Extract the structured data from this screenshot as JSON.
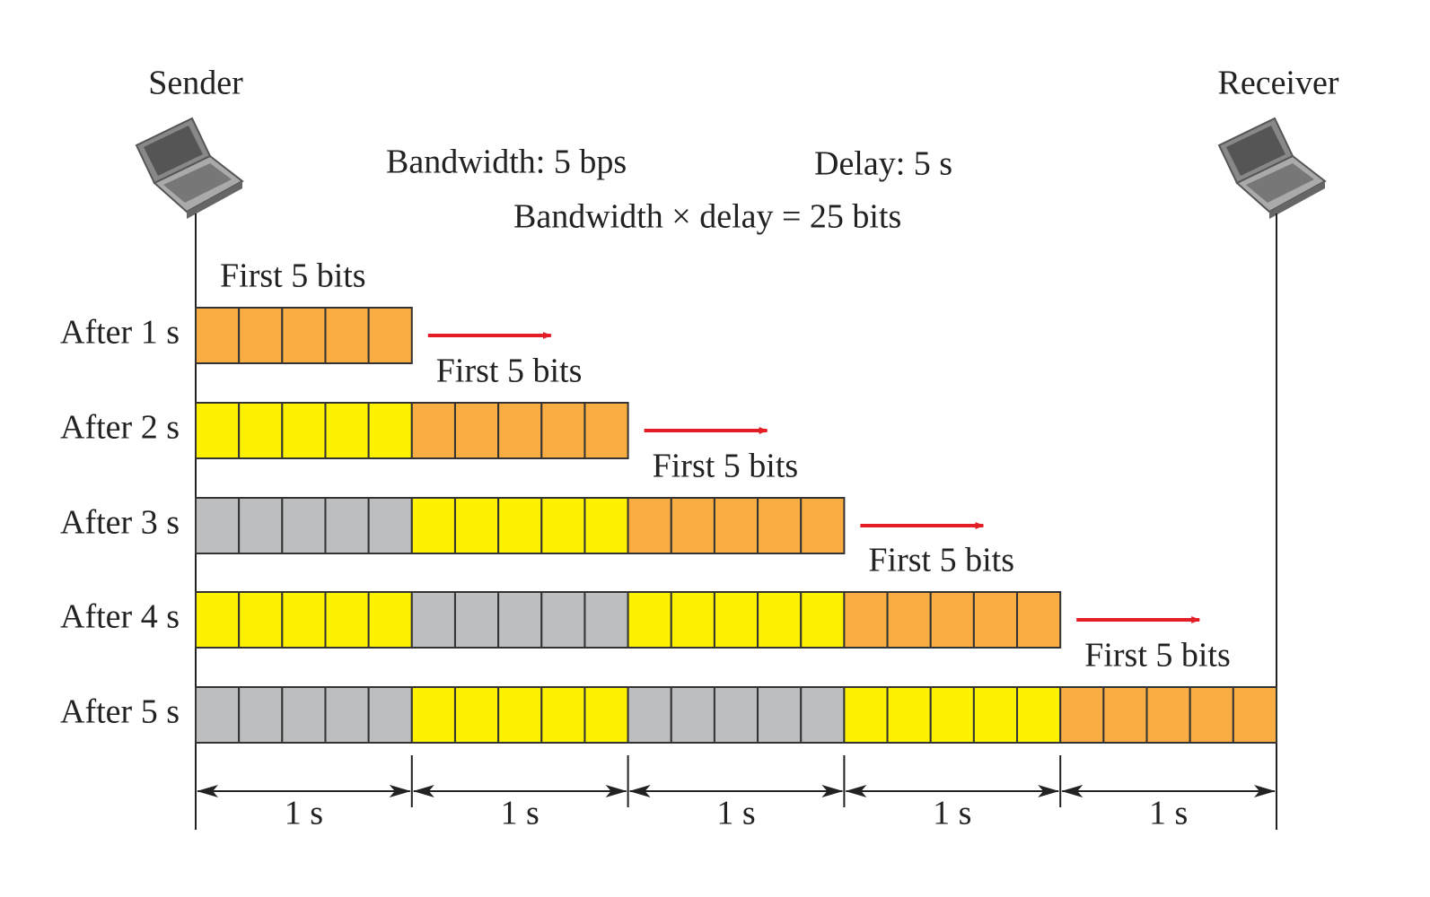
{
  "sender": "Sender",
  "receiver": "Receiver",
  "bandwidth": "Bandwidth: 5 bps",
  "delay": "Delay: 5 s",
  "product": "Bandwidth × delay = 25 bits",
  "rows": [
    {
      "label": "After 1 s",
      "caption": "First 5 bits",
      "groups": [
        "#f9ad42"
      ]
    },
    {
      "label": "After 2 s",
      "caption": "First 5 bits",
      "groups": [
        "#fff200",
        "#f9ad42"
      ]
    },
    {
      "label": "After 3 s",
      "caption": "First 5 bits",
      "groups": [
        "#bcbec0",
        "#fff200",
        "#f9ad42"
      ]
    },
    {
      "label": "After 4 s",
      "caption": "First 5 bits",
      "groups": [
        "#fff200",
        "#bcbec0",
        "#fff200",
        "#f9ad42"
      ]
    },
    {
      "label": "After 5 s",
      "caption": "First 5 bits",
      "groups": [
        "#bcbec0",
        "#fff200",
        "#bcbec0",
        "#fff200",
        "#f9ad42"
      ]
    }
  ],
  "intervals": [
    "1 s",
    "1 s",
    "1 s",
    "1 s",
    "1 s"
  ]
}
